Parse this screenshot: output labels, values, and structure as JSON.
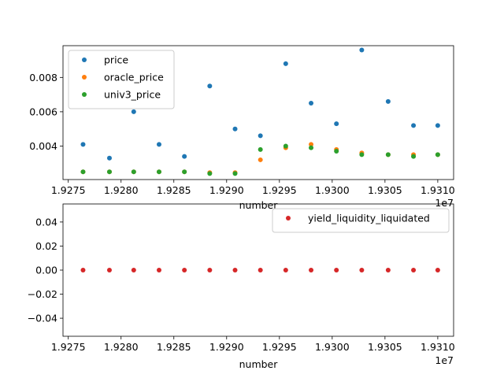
{
  "chart_data": [
    {
      "type": "scatter",
      "xlabel": "number",
      "x_offset_label": "1e7",
      "xlim": [
        1.92745,
        1.93115
      ],
      "ylim": [
        0.00205,
        0.00985
      ],
      "x_ticks": [
        1.9275,
        1.928,
        1.9285,
        1.929,
        1.9295,
        1.93,
        1.9305,
        1.931
      ],
      "x_tick_labels": [
        "1.9275",
        "1.9280",
        "1.9285",
        "1.9290",
        "1.9295",
        "1.9300",
        "1.9305",
        "1.9310"
      ],
      "y_ticks": [
        0.004,
        0.006,
        0.008
      ],
      "y_tick_labels": [
        "0.004",
        "0.006",
        "0.008"
      ],
      "grid": false,
      "legend_position": "top-left",
      "series": [
        {
          "name": "price",
          "color": "#1f77b4",
          "points": [
            [
              1.92764,
              0.0041
            ],
            [
              1.92789,
              0.0033
            ],
            [
              1.92812,
              0.006
            ],
            [
              1.92836,
              0.0041
            ],
            [
              1.9286,
              0.0034
            ],
            [
              1.92884,
              0.0075
            ],
            [
              1.92908,
              0.005
            ],
            [
              1.92932,
              0.0046
            ],
            [
              1.92956,
              0.0088
            ],
            [
              1.9298,
              0.0065
            ],
            [
              1.93004,
              0.0053
            ],
            [
              1.93028,
              0.0096
            ],
            [
              1.93053,
              0.0066
            ],
            [
              1.93077,
              0.0052
            ],
            [
              1.931,
              0.0052
            ]
          ]
        },
        {
          "name": "oracle_price",
          "color": "#ff7f0e",
          "points": [
            [
              1.92764,
              0.0025
            ],
            [
              1.92789,
              0.0025
            ],
            [
              1.92812,
              0.0025
            ],
            [
              1.92836,
              0.0025
            ],
            [
              1.9286,
              0.0025
            ],
            [
              1.92884,
              0.00245
            ],
            [
              1.92908,
              0.00245
            ],
            [
              1.92932,
              0.0032
            ],
            [
              1.92956,
              0.0039
            ],
            [
              1.9298,
              0.0041
            ],
            [
              1.93004,
              0.0038
            ],
            [
              1.93028,
              0.0036
            ],
            [
              1.93053,
              0.0035
            ],
            [
              1.93077,
              0.0035
            ],
            [
              1.931,
              0.0035
            ]
          ]
        },
        {
          "name": "univ3_price",
          "color": "#2ca02c",
          "points": [
            [
              1.92764,
              0.0025
            ],
            [
              1.92789,
              0.0025
            ],
            [
              1.92812,
              0.0025
            ],
            [
              1.92836,
              0.0025
            ],
            [
              1.9286,
              0.0025
            ],
            [
              1.92884,
              0.0024
            ],
            [
              1.92908,
              0.0024
            ],
            [
              1.92932,
              0.0038
            ],
            [
              1.92956,
              0.004
            ],
            [
              1.9298,
              0.0039
            ],
            [
              1.93004,
              0.0037
            ],
            [
              1.93028,
              0.0035
            ],
            [
              1.93053,
              0.0035
            ],
            [
              1.93077,
              0.0034
            ],
            [
              1.931,
              0.0035
            ]
          ]
        }
      ]
    },
    {
      "type": "scatter",
      "xlabel": "number",
      "x_offset_label": "1e7",
      "xlim": [
        1.92745,
        1.93115
      ],
      "ylim": [
        -0.055,
        0.055
      ],
      "x_ticks": [
        1.9275,
        1.928,
        1.9285,
        1.929,
        1.9295,
        1.93,
        1.9305,
        1.931
      ],
      "x_tick_labels": [
        "1.9275",
        "1.9280",
        "1.9285",
        "1.9290",
        "1.9295",
        "1.9300",
        "1.9305",
        "1.9310"
      ],
      "y_ticks": [
        -0.04,
        -0.02,
        0.0,
        0.02,
        0.04
      ],
      "y_tick_labels": [
        "−0.04",
        "−0.02",
        "0.00",
        "0.02",
        "0.04"
      ],
      "grid": false,
      "legend_position": "top-right",
      "series": [
        {
          "name": "yield_liquidity_liquidated",
          "color": "#d62728",
          "points": [
            [
              1.92764,
              0
            ],
            [
              1.92789,
              0
            ],
            [
              1.92812,
              0
            ],
            [
              1.92836,
              0
            ],
            [
              1.9286,
              0
            ],
            [
              1.92884,
              0
            ],
            [
              1.92908,
              0
            ],
            [
              1.92932,
              0
            ],
            [
              1.92956,
              0
            ],
            [
              1.9298,
              0
            ],
            [
              1.93004,
              0
            ],
            [
              1.93028,
              0
            ],
            [
              1.93053,
              0
            ],
            [
              1.93077,
              0
            ],
            [
              1.931,
              0
            ]
          ]
        }
      ]
    }
  ]
}
